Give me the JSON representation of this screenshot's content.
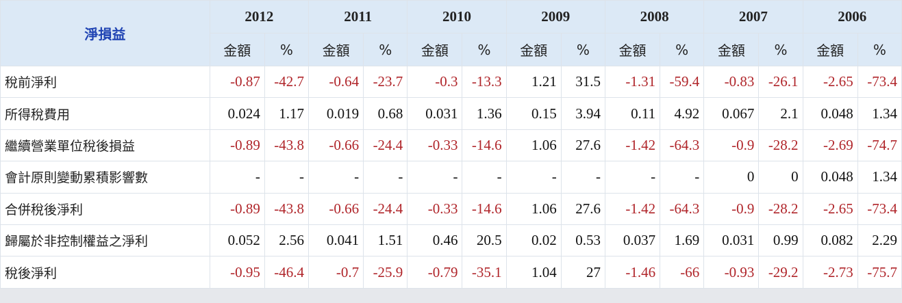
{
  "header": {
    "title": "淨損益",
    "years": [
      "2012",
      "2011",
      "2010",
      "2009",
      "2008",
      "2007",
      "2006"
    ],
    "sub_labels": [
      "金額",
      "%"
    ]
  },
  "table": {
    "rows": [
      [
        "稅前淨利",
        "-0.87",
        "-42.7",
        "-0.64",
        "-23.7",
        "-0.3",
        "-13.3",
        "1.21",
        "31.5",
        "-1.31",
        "-59.4",
        "-0.83",
        "-26.1",
        "-2.65",
        "-73.4"
      ],
      [
        "所得稅費用",
        "0.024",
        "1.17",
        "0.019",
        "0.68",
        "0.031",
        "1.36",
        "0.15",
        "3.94",
        "0.11",
        "4.92",
        "0.067",
        "2.1",
        "0.048",
        "1.34"
      ],
      [
        "繼續營業單位稅後損益",
        "-0.89",
        "-43.8",
        "-0.66",
        "-24.4",
        "-0.33",
        "-14.6",
        "1.06",
        "27.6",
        "-1.42",
        "-64.3",
        "-0.9",
        "-28.2",
        "-2.69",
        "-74.7"
      ],
      [
        "會計原則變動累積影響數",
        "-",
        "-",
        "-",
        "-",
        "-",
        "-",
        "-",
        "-",
        "-",
        "-",
        "0",
        "0",
        "0.048",
        "1.34"
      ],
      [
        "合併稅後淨利",
        "-0.89",
        "-43.8",
        "-0.66",
        "-24.4",
        "-0.33",
        "-14.6",
        "1.06",
        "27.6",
        "-1.42",
        "-64.3",
        "-0.9",
        "-28.2",
        "-2.65",
        "-73.4"
      ],
      [
        "歸屬於非控制權益之淨利",
        "0.052",
        "2.56",
        "0.041",
        "1.51",
        "0.46",
        "20.5",
        "0.02",
        "0.53",
        "0.037",
        "1.69",
        "0.031",
        "0.99",
        "0.082",
        "2.29"
      ],
      [
        "稅後淨利",
        "-0.95",
        "-46.4",
        "-0.7",
        "-25.9",
        "-0.79",
        "-35.1",
        "1.04",
        "27",
        "-1.46",
        "-66",
        "-0.93",
        "-29.2",
        "-2.73",
        "-75.7"
      ]
    ]
  }
}
